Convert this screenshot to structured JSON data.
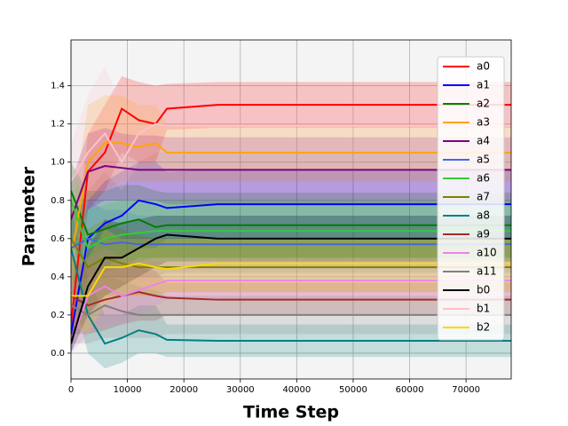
{
  "chart_data": {
    "type": "line",
    "x_label": "Time Step",
    "y_label": "Parameter",
    "x": [
      0,
      3000,
      6000,
      9000,
      12000,
      15000,
      17000,
      26000,
      78000
    ],
    "xlim": [
      0,
      78000
    ],
    "ylim": [
      -0.135,
      1.64
    ],
    "xticks": [
      0,
      10000,
      20000,
      30000,
      40000,
      50000,
      60000,
      70000
    ],
    "yticks": [
      {
        "value": 0,
        "label": "0.0"
      },
      0.2,
      0.4,
      0.6,
      0.8,
      {
        "value": 1,
        "label": "1.0"
      },
      1.2,
      1.4
    ],
    "grid": true,
    "legend": "upper right",
    "background": "#f4f4f4",
    "band_opacity": 0.2,
    "series": [
      {
        "name": "a0",
        "color": "#ff0000",
        "values": [
          0.15,
          0.95,
          1.05,
          1.28,
          1.22,
          1.2,
          1.28,
          1.3,
          1.3
        ],
        "lower": [
          0.0,
          0.75,
          0.85,
          1.05,
          1.0,
          1.0,
          1.17,
          1.18,
          1.18
        ],
        "upper": [
          0.3,
          1.15,
          1.3,
          1.45,
          1.42,
          1.4,
          1.41,
          1.42,
          1.42
        ]
      },
      {
        "name": "a1",
        "color": "#0000ff",
        "values": [
          0.1,
          0.6,
          0.68,
          0.72,
          0.8,
          0.78,
          0.76,
          0.78,
          0.78
        ],
        "lower": [
          0,
          0.4,
          0.45,
          0.5,
          0.55,
          0.55,
          0.6,
          0.6,
          0.6
        ],
        "upper": [
          0.3,
          0.8,
          0.9,
          0.95,
          1.0,
          1.0,
          0.95,
          0.96,
          0.96
        ]
      },
      {
        "name": "a2",
        "color": "#008000",
        "values": [
          0.85,
          0.62,
          0.65,
          0.68,
          0.7,
          0.66,
          0.67,
          0.67,
          0.67
        ],
        "lower": [
          0.6,
          0.45,
          0.45,
          0.45,
          0.5,
          0.5,
          0.5,
          0.5,
          0.5
        ],
        "upper": [
          1.0,
          0.85,
          0.85,
          0.88,
          0.88,
          0.85,
          0.84,
          0.84,
          0.84
        ]
      },
      {
        "name": "a3",
        "color": "#ffa500",
        "values": [
          0.5,
          1.0,
          1.1,
          1.1,
          1.08,
          1.1,
          1.05,
          1.05,
          1.05
        ],
        "lower": [
          0.3,
          0.8,
          0.85,
          0.9,
          0.9,
          0.9,
          0.9,
          0.9,
          0.9
        ],
        "upper": [
          0.7,
          1.3,
          1.35,
          1.35,
          1.3,
          1.3,
          1.2,
          1.2,
          1.2
        ]
      },
      {
        "name": "a4",
        "color": "#800080",
        "values": [
          0.7,
          0.95,
          0.98,
          0.97,
          0.96,
          0.96,
          0.96,
          0.96,
          0.96
        ],
        "lower": [
          0.5,
          0.75,
          0.8,
          0.8,
          0.8,
          0.8,
          0.78,
          0.78,
          0.78
        ],
        "upper": [
          0.9,
          1.15,
          1.18,
          1.15,
          1.14,
          1.14,
          1.13,
          1.13,
          1.13
        ]
      },
      {
        "name": "a5",
        "color": "#4169e1",
        "values": [
          0.55,
          0.6,
          0.57,
          0.58,
          0.57,
          0.57,
          0.57,
          0.57,
          0.57
        ],
        "lower": [
          0.35,
          0.4,
          0.4,
          0.4,
          0.4,
          0.4,
          0.42,
          0.42,
          0.42
        ],
        "upper": [
          0.75,
          0.8,
          0.75,
          0.75,
          0.72,
          0.72,
          0.72,
          0.72,
          0.72
        ]
      },
      {
        "name": "a6",
        "color": "#32cd32",
        "values": [
          0.8,
          0.55,
          0.6,
          0.62,
          0.63,
          0.64,
          0.64,
          0.64,
          0.64
        ],
        "lower": [
          0.6,
          0.35,
          0.42,
          0.45,
          0.48,
          0.5,
          0.5,
          0.5,
          0.5
        ],
        "upper": [
          1.0,
          0.75,
          0.78,
          0.8,
          0.8,
          0.8,
          0.8,
          0.8,
          0.8
        ]
      },
      {
        "name": "a7",
        "color": "#808000",
        "values": [
          0.6,
          0.45,
          0.5,
          0.47,
          0.45,
          0.45,
          0.45,
          0.45,
          0.45
        ],
        "lower": [
          0.4,
          0.25,
          0.3,
          0.3,
          0.3,
          0.3,
          0.32,
          0.32,
          0.32
        ],
        "upper": [
          0.8,
          0.65,
          0.7,
          0.65,
          0.62,
          0.6,
          0.6,
          0.6,
          0.6
        ]
      },
      {
        "name": "a8",
        "color": "#008080",
        "values": [
          0.55,
          0.2,
          0.05,
          0.08,
          0.12,
          0.1,
          0.07,
          0.065,
          0.065
        ],
        "lower": [
          0.35,
          0.0,
          -0.08,
          -0.05,
          0,
          0,
          -0.02,
          -0.02,
          -0.02
        ],
        "upper": [
          0.75,
          0.4,
          0.2,
          0.2,
          0.25,
          0.25,
          0.15,
          0.15,
          0.15
        ]
      },
      {
        "name": "a9",
        "color": "#a52a2a",
        "values": [
          0.3,
          0.25,
          0.28,
          0.3,
          0.32,
          0.3,
          0.29,
          0.28,
          0.28
        ],
        "lower": [
          0.1,
          0.1,
          0.12,
          0.15,
          0.17,
          0.17,
          0.2,
          0.2,
          0.2
        ],
        "upper": [
          0.5,
          0.45,
          0.45,
          0.45,
          0.45,
          0.43,
          0.37,
          0.37,
          0.37
        ]
      },
      {
        "name": "a10",
        "color": "#ee82ee",
        "values": [
          0.05,
          0.3,
          0.35,
          0.3,
          0.33,
          0.36,
          0.38,
          0.38,
          0.38
        ],
        "lower": [
          0,
          0.1,
          0.15,
          0.15,
          0.2,
          0.25,
          0.28,
          0.28,
          0.28
        ],
        "upper": [
          0.2,
          0.5,
          0.55,
          0.5,
          0.48,
          0.48,
          0.48,
          0.48,
          0.48
        ]
      },
      {
        "name": "a11",
        "color": "#808080",
        "values": [
          0.25,
          0.2,
          0.25,
          0.22,
          0.2,
          0.2,
          0.2,
          0.2,
          0.2
        ],
        "lower": [
          0.05,
          0.05,
          0.08,
          0.08,
          0.08,
          0.08,
          0.1,
          0.1,
          0.1
        ],
        "upper": [
          0.45,
          0.4,
          0.4,
          0.38,
          0.35,
          0.33,
          0.3,
          0.3,
          0.3
        ]
      },
      {
        "name": "b0",
        "color": "#000000",
        "values": [
          0.05,
          0.35,
          0.5,
          0.5,
          0.55,
          0.6,
          0.62,
          0.6,
          0.6
        ],
        "lower": [
          0,
          0.2,
          0.3,
          0.35,
          0.4,
          0.45,
          0.48,
          0.48,
          0.48
        ],
        "upper": [
          0.2,
          0.55,
          0.7,
          0.68,
          0.7,
          0.72,
          0.72,
          0.72,
          0.72
        ]
      },
      {
        "name": "b1",
        "color": "#ffc0cb",
        "values": [
          0.9,
          1.05,
          1.15,
          1.0,
          1.15,
          1.2,
          1.19,
          1.19,
          1.19
        ],
        "lower": [
          0.7,
          0.85,
          0.95,
          0.85,
          1.0,
          1.05,
          1.05,
          1.05,
          1.05
        ],
        "upper": [
          1.1,
          1.35,
          1.5,
          1.3,
          1.3,
          1.35,
          1.33,
          1.33,
          1.33
        ]
      },
      {
        "name": "b2",
        "color": "#ffd700",
        "values": [
          0.3,
          0.3,
          0.45,
          0.45,
          0.47,
          0.45,
          0.44,
          0.47,
          0.47
        ],
        "lower": [
          0.15,
          0.1,
          0.25,
          0.3,
          0.3,
          0.3,
          0.32,
          0.32,
          0.32
        ],
        "upper": [
          0.5,
          0.5,
          0.65,
          0.6,
          0.6,
          0.6,
          0.6,
          0.6,
          0.6
        ]
      }
    ]
  }
}
